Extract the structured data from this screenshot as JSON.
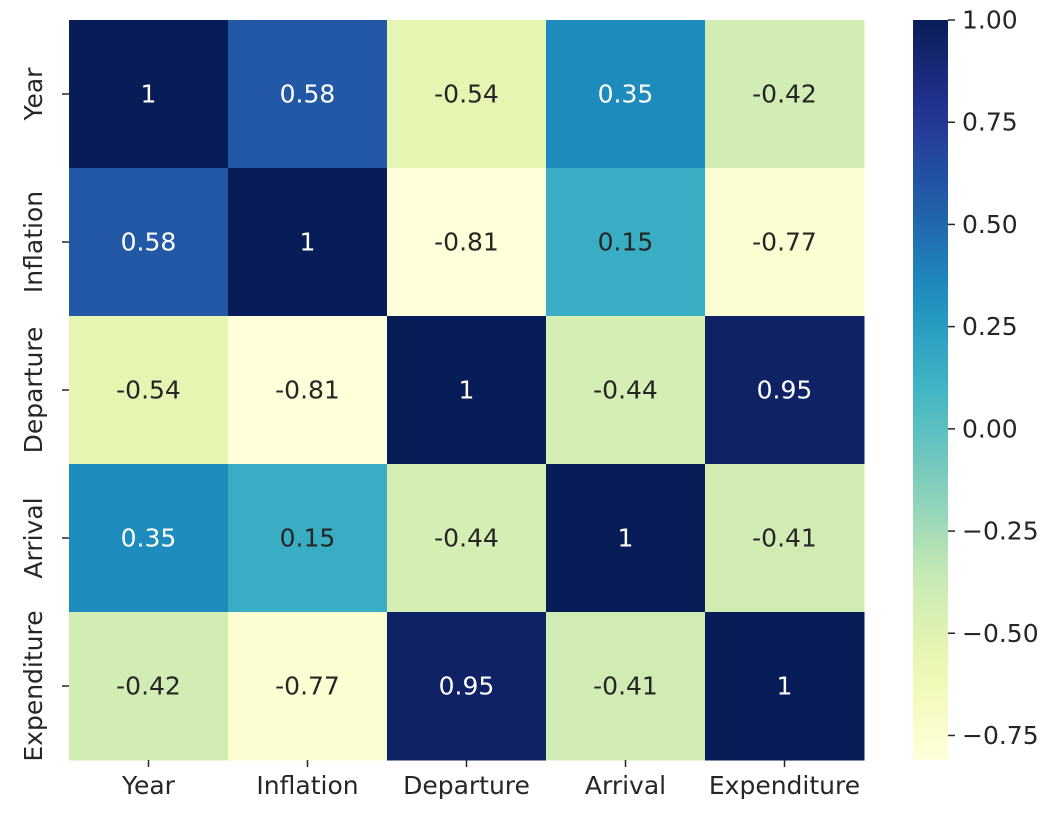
{
  "chart_data": {
    "type": "heatmap",
    "title": "",
    "xlabel": "",
    "ylabel": "",
    "x_categories": [
      "Year",
      "Inflation",
      "Departure",
      "Arrival",
      "Expenditure"
    ],
    "y_categories": [
      "Year",
      "Inflation",
      "Departure",
      "Arrival",
      "Expenditure"
    ],
    "values": [
      [
        1,
        0.58,
        -0.54,
        0.35,
        -0.42
      ],
      [
        0.58,
        1,
        -0.81,
        0.15,
        -0.77
      ],
      [
        -0.54,
        -0.81,
        1,
        -0.44,
        0.95
      ],
      [
        0.35,
        0.15,
        -0.44,
        1,
        -0.41
      ],
      [
        -0.42,
        -0.77,
        0.95,
        -0.41,
        1
      ]
    ],
    "annotations": [
      [
        "1",
        "0.58",
        "-0.54",
        "0.35",
        "-0.42"
      ],
      [
        "0.58",
        "1",
        "-0.81",
        "0.15",
        "-0.77"
      ],
      [
        "-0.54",
        "-0.81",
        "1",
        "-0.44",
        "0.95"
      ],
      [
        "0.35",
        "0.15",
        "-0.44",
        "1",
        "-0.41"
      ],
      [
        "-0.42",
        "-0.77",
        "0.95",
        "-0.41",
        "1"
      ]
    ],
    "colormap": "YlGnBu",
    "vmin": -0.81,
    "vmax": 1,
    "colorbar": {
      "ticks": [
        1.0,
        0.75,
        0.5,
        0.25,
        0.0,
        -0.25,
        -0.5,
        -0.75
      ],
      "tick_labels": [
        "1.00",
        "0.75",
        "0.50",
        "0.25",
        "0.00",
        "−0.25",
        "−0.50",
        "−0.75"
      ],
      "placement": "right"
    },
    "grid": false,
    "legend": "none"
  }
}
